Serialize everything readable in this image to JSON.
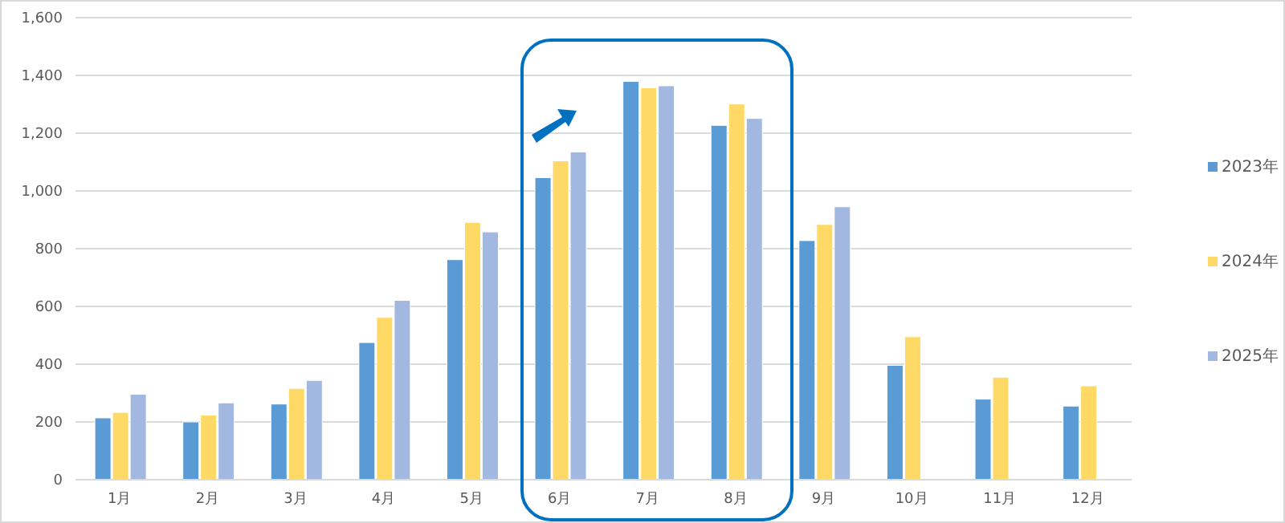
{
  "chart_data": {
    "type": "bar",
    "categories": [
      "1月",
      "2月",
      "3月",
      "4月",
      "5月",
      "6月",
      "7月",
      "8月",
      "9月",
      "10月",
      "11月",
      "12月"
    ],
    "series": [
      {
        "name": "2023年",
        "color": "#5b9bd5",
        "values": [
          214,
          200,
          262,
          475,
          762,
          1046,
          1379,
          1227,
          828,
          396,
          279,
          255
        ]
      },
      {
        "name": "2024年",
        "color": "#ffd966",
        "values": [
          233,
          224,
          316,
          562,
          891,
          1104,
          1357,
          1301,
          884,
          495,
          355,
          325
        ]
      },
      {
        "name": "2025年",
        "color": "#a2b8e0",
        "values": [
          296,
          266,
          344,
          621,
          858,
          1135,
          1364,
          1251,
          945,
          null,
          null,
          null
        ]
      }
    ],
    "ylim": [
      0,
      1600
    ],
    "yticks": [
      0,
      {
        "value": 200,
        "label": "200"
      },
      {
        "value": 400,
        "label": "400"
      },
      {
        "value": 600,
        "label": "600"
      },
      {
        "value": 800,
        "label": "800"
      },
      {
        "value": 1000,
        "label": "1,000"
      },
      {
        "value": 1200,
        "label": "1,200"
      },
      {
        "value": 1400,
        "label": "1,400"
      },
      {
        "value": 1600,
        "label": "1,600"
      }
    ],
    "grid": "y",
    "legend": "right"
  }
}
